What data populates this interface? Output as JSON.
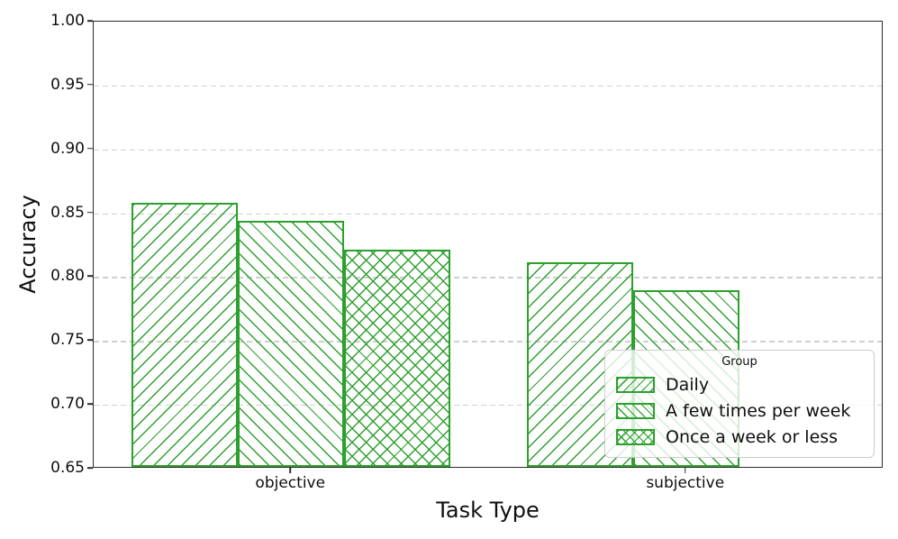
{
  "figure": {
    "background": "#ffffff",
    "accent_green": "#2ca02c",
    "grid_color": "#cfcfcf",
    "spine_color": "#2a2a2a"
  },
  "chart_data": {
    "type": "bar",
    "title": "",
    "xlabel": "Task Type",
    "ylabel": "Accuracy",
    "categories": [
      "objective",
      "subjective"
    ],
    "series": [
      {
        "name": "Daily",
        "hatch": "/",
        "values": [
          0.857,
          0.81
        ]
      },
      {
        "name": "A few times per week",
        "hatch": "\\",
        "values": [
          0.843,
          0.788
        ]
      },
      {
        "name": "Once a week or less",
        "hatch": "x",
        "values": [
          0.82,
          null
        ]
      }
    ],
    "ylim": [
      0.65,
      1.0
    ],
    "yticks": [
      0.65,
      0.7,
      0.75,
      0.8,
      0.85,
      0.9,
      0.95,
      1.0
    ],
    "ytick_labels": [
      "0.65",
      "0.70",
      "0.75",
      "0.80",
      "0.85",
      "0.90",
      "0.95",
      "1.00"
    ],
    "grid": "horizontal-dashed",
    "bar_edge_color": "#2ca02c",
    "bar_face": "transparent",
    "legend": {
      "title": "Group",
      "position": "lower right",
      "entries": [
        "Daily",
        "A few times per week",
        "Once a week or less"
      ]
    }
  }
}
